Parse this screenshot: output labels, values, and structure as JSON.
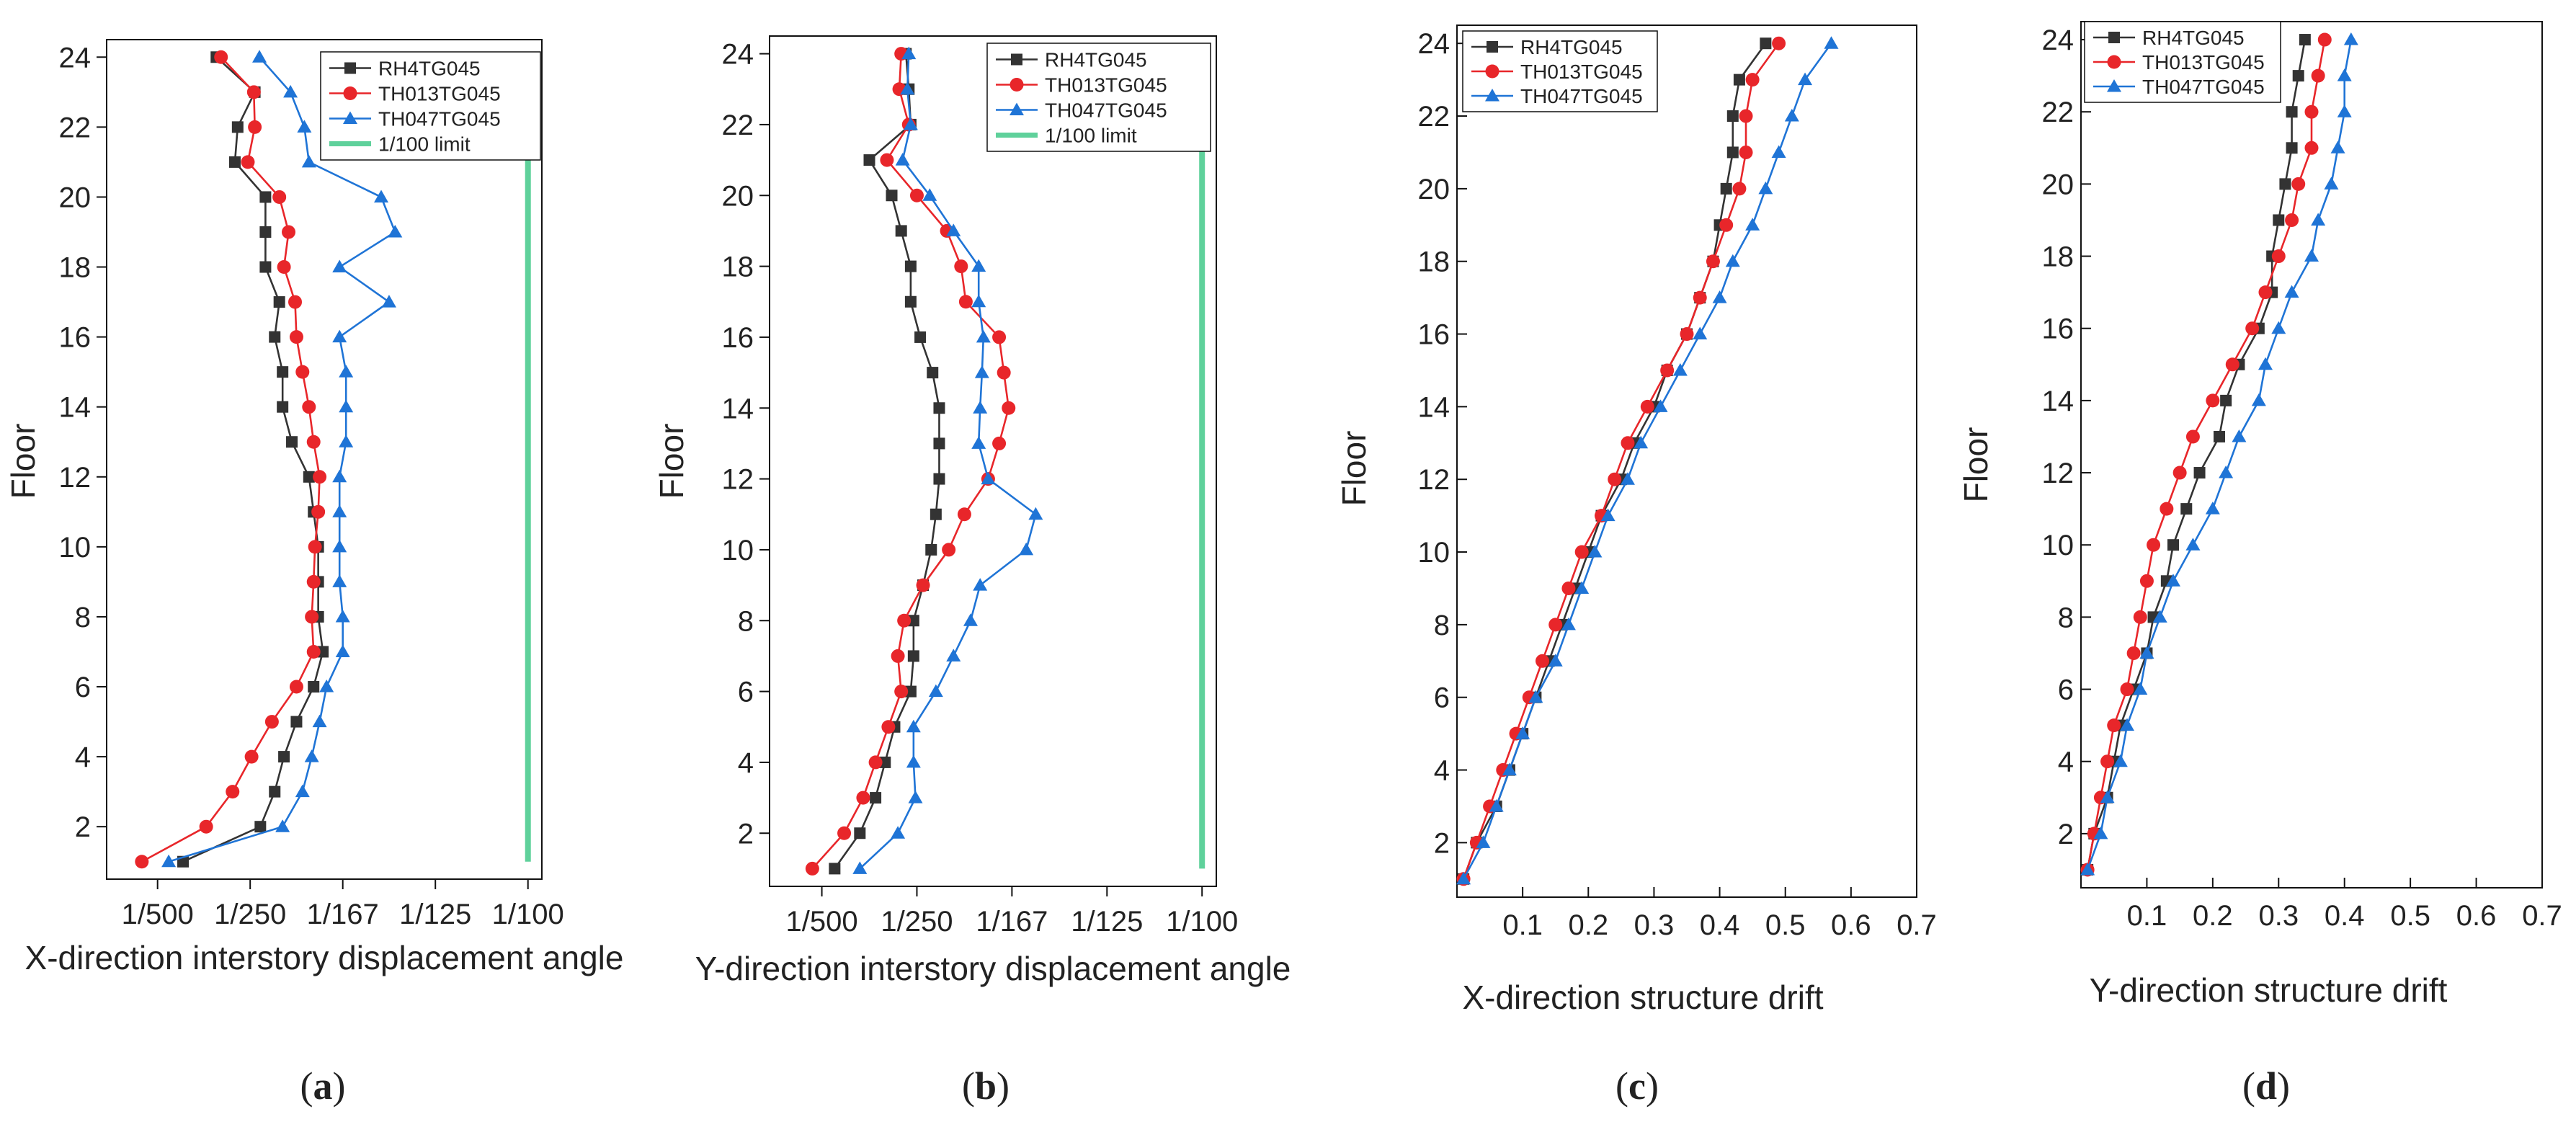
{
  "figure": {
    "series_colors": {
      "RH4TG045": "#333333",
      "TH013TG045": "#e8262a",
      "TH047TG045": "#1f74d6",
      "1/100 limit": "#5fd19b"
    }
  },
  "chart_data": [
    {
      "panel": "a",
      "type": "line",
      "xlabel": "X-direction interstory displacement angle",
      "ylabel": "Floor",
      "x_unit": "drift ratio (1/N)",
      "xlim": [
        0.0009,
        0.0103
      ],
      "ylim": [
        0.5,
        24.5
      ],
      "xticks": [
        0.002,
        0.004,
        0.006,
        0.008,
        0.01
      ],
      "xtick_labels": [
        "1/500",
        "1/250",
        "1/167",
        "1/125",
        "1/100"
      ],
      "yticks": [
        2,
        4,
        6,
        8,
        10,
        12,
        14,
        16,
        18,
        20,
        22,
        24
      ],
      "ytick_labels": [
        "2",
        "4",
        "6",
        "8",
        "10",
        "12",
        "14",
        "16",
        "18",
        "20",
        "22",
        "24"
      ],
      "legend": [
        "RH4TG045",
        "TH013TG045",
        "TH047TG045",
        "1/100 limit"
      ],
      "legend_position": "top-right",
      "panel_label": "a",
      "series": [
        {
          "name": "RH4TG045",
          "marker": "square",
          "y": [
            1,
            2,
            3,
            4,
            5,
            6,
            7,
            8,
            9,
            10,
            11,
            12,
            13,
            14,
            15,
            16,
            17,
            18,
            19,
            20,
            21,
            22,
            23,
            24
          ],
          "x": [
            0.00255,
            0.00422,
            0.00453,
            0.00473,
            0.005,
            0.00537,
            0.00557,
            0.00547,
            0.00547,
            0.00547,
            0.00537,
            0.00527,
            0.0049,
            0.0047,
            0.0047,
            0.00453,
            0.00463,
            0.00433,
            0.00433,
            0.00433,
            0.00367,
            0.00373,
            0.0041,
            0.00327
          ]
        },
        {
          "name": "TH013TG045",
          "marker": "circle",
          "y": [
            1,
            2,
            3,
            4,
            5,
            6,
            7,
            8,
            9,
            10,
            11,
            12,
            13,
            14,
            15,
            16,
            17,
            18,
            19,
            20,
            21,
            22,
            23,
            24
          ],
          "x": [
            0.00166,
            0.00305,
            0.00362,
            0.00403,
            0.00447,
            0.005,
            0.00537,
            0.00533,
            0.00537,
            0.0054,
            0.00547,
            0.0055,
            0.00537,
            0.00527,
            0.00513,
            0.005,
            0.00497,
            0.00473,
            0.00483,
            0.00463,
            0.00395,
            0.0041,
            0.00408,
            0.00337
          ]
        },
        {
          "name": "TH047TG045",
          "marker": "triangle",
          "y": [
            1,
            2,
            3,
            4,
            5,
            6,
            7,
            8,
            9,
            10,
            11,
            12,
            13,
            14,
            15,
            16,
            17,
            18,
            19,
            20,
            21,
            22,
            23,
            24
          ],
          "x": [
            0.00224,
            0.0047,
            0.00513,
            0.00533,
            0.0055,
            0.00565,
            0.006,
            0.006,
            0.00593,
            0.00593,
            0.00593,
            0.00593,
            0.00607,
            0.00607,
            0.00607,
            0.00593,
            0.007,
            0.00593,
            0.00713,
            0.00683,
            0.00527,
            0.00517,
            0.00487,
            0.0042
          ]
        },
        {
          "name": "1/100 limit",
          "marker": "none",
          "y": [
            1,
            24
          ],
          "x": [
            0.01,
            0.01
          ]
        }
      ]
    },
    {
      "panel": "b",
      "type": "line",
      "xlabel": "Y-direction interstory displacement angle",
      "ylabel": "Floor",
      "x_unit": "drift ratio (1/N)",
      "xlim": [
        0.0009,
        0.0103
      ],
      "ylim": [
        0.5,
        24.5
      ],
      "xticks": [
        0.002,
        0.004,
        0.006,
        0.008,
        0.01
      ],
      "xtick_labels": [
        "1/500",
        "1/250",
        "1/167",
        "1/125",
        "1/100"
      ],
      "yticks": [
        2,
        4,
        6,
        8,
        10,
        12,
        14,
        16,
        18,
        20,
        22,
        24
      ],
      "ytick_labels": [
        "2",
        "4",
        "6",
        "8",
        "10",
        "12",
        "14",
        "16",
        "18",
        "20",
        "22",
        "24"
      ],
      "legend": [
        "RH4TG045",
        "TH013TG045",
        "TH047TG045",
        "1/100 limit"
      ],
      "legend_position": "top-right",
      "panel_label": "b",
      "series": [
        {
          "name": "RH4TG045",
          "marker": "square",
          "y": [
            1,
            2,
            3,
            4,
            5,
            6,
            7,
            8,
            9,
            10,
            11,
            12,
            13,
            14,
            15,
            16,
            17,
            18,
            19,
            20,
            21,
            22,
            23,
            24
          ],
          "x": [
            0.00227,
            0.0028,
            0.00313,
            0.00333,
            0.00353,
            0.00387,
            0.00393,
            0.00393,
            0.00413,
            0.0043,
            0.0044,
            0.00447,
            0.00447,
            0.00447,
            0.00433,
            0.00407,
            0.00387,
            0.00387,
            0.00367,
            0.00347,
            0.003,
            0.00387,
            0.00383,
            0.00377
          ]
        },
        {
          "name": "TH013TG045",
          "marker": "circle",
          "y": [
            1,
            2,
            3,
            4,
            5,
            6,
            7,
            8,
            9,
            10,
            11,
            12,
            13,
            14,
            15,
            16,
            17,
            18,
            19,
            20,
            21,
            22,
            23,
            24
          ],
          "x": [
            0.0018,
            0.00247,
            0.00287,
            0.00313,
            0.0034,
            0.00367,
            0.0036,
            0.00373,
            0.00413,
            0.00467,
            0.005,
            0.0055,
            0.00573,
            0.00593,
            0.00583,
            0.00573,
            0.00503,
            0.00493,
            0.00463,
            0.004,
            0.00337,
            0.00383,
            0.00363,
            0.00367
          ]
        },
        {
          "name": "TH047TG045",
          "marker": "triangle",
          "y": [
            1,
            2,
            3,
            4,
            5,
            6,
            7,
            8,
            9,
            10,
            11,
            12,
            13,
            14,
            15,
            16,
            17,
            18,
            19,
            20,
            21,
            22,
            23,
            24
          ],
          "x": [
            0.0028,
            0.0036,
            0.00397,
            0.00393,
            0.00393,
            0.0044,
            0.00477,
            0.00513,
            0.00533,
            0.0063,
            0.0065,
            0.0055,
            0.0053,
            0.00533,
            0.00537,
            0.0054,
            0.0053,
            0.0053,
            0.00477,
            0.00427,
            0.0037,
            0.00387,
            0.0038,
            0.00383
          ]
        },
        {
          "name": "1/100 limit",
          "marker": "none",
          "y": [
            1,
            24
          ],
          "x": [
            0.01,
            0.01
          ]
        }
      ]
    },
    {
      "panel": "c",
      "type": "line",
      "xlabel": "X-direction structure drift",
      "ylabel": "Floor",
      "xlim": [
        0.0,
        0.7
      ],
      "ylim": [
        0.5,
        24.5
      ],
      "xticks": [
        0.1,
        0.2,
        0.3,
        0.4,
        0.5,
        0.6,
        0.7
      ],
      "xtick_labels": [
        "0.1",
        "0.2",
        "0.3",
        "0.4",
        "0.5",
        "0.6",
        "0.7"
      ],
      "yticks": [
        2,
        4,
        6,
        8,
        10,
        12,
        14,
        16,
        18,
        20,
        22,
        24
      ],
      "ytick_labels": [
        "2",
        "4",
        "6",
        "8",
        "10",
        "12",
        "14",
        "16",
        "18",
        "20",
        "22",
        "24"
      ],
      "legend": [
        "RH4TG045",
        "TH013TG045",
        "TH047TG045"
      ],
      "legend_position": "top-left",
      "panel_label": "c",
      "series": [
        {
          "name": "RH4TG045",
          "marker": "square",
          "y": [
            1,
            2,
            3,
            4,
            5,
            6,
            7,
            8,
            9,
            10,
            11,
            12,
            13,
            14,
            15,
            16,
            17,
            18,
            19,
            20,
            21,
            22,
            23,
            24
          ],
          "x": [
            0.01,
            0.03,
            0.06,
            0.08,
            0.1,
            0.12,
            0.14,
            0.16,
            0.18,
            0.2,
            0.22,
            0.25,
            0.27,
            0.3,
            0.32,
            0.35,
            0.37,
            0.39,
            0.4,
            0.41,
            0.42,
            0.42,
            0.43,
            0.47
          ]
        },
        {
          "name": "TH013TG045",
          "marker": "circle",
          "y": [
            1,
            2,
            3,
            4,
            5,
            6,
            7,
            8,
            9,
            10,
            11,
            12,
            13,
            14,
            15,
            16,
            17,
            18,
            19,
            20,
            21,
            22,
            23,
            24
          ],
          "x": [
            0.01,
            0.03,
            0.05,
            0.07,
            0.09,
            0.11,
            0.13,
            0.15,
            0.17,
            0.19,
            0.22,
            0.24,
            0.26,
            0.29,
            0.32,
            0.35,
            0.37,
            0.39,
            0.41,
            0.43,
            0.44,
            0.44,
            0.45,
            0.49
          ]
        },
        {
          "name": "TH047TG045",
          "marker": "triangle",
          "y": [
            1,
            2,
            3,
            4,
            5,
            6,
            7,
            8,
            9,
            10,
            11,
            12,
            13,
            14,
            15,
            16,
            17,
            18,
            19,
            20,
            21,
            22,
            23,
            24
          ],
          "x": [
            0.01,
            0.04,
            0.06,
            0.08,
            0.1,
            0.12,
            0.15,
            0.17,
            0.19,
            0.21,
            0.23,
            0.26,
            0.28,
            0.31,
            0.34,
            0.37,
            0.4,
            0.42,
            0.45,
            0.47,
            0.49,
            0.51,
            0.53,
            0.57
          ]
        }
      ]
    },
    {
      "panel": "d",
      "type": "line",
      "xlabel": "Y-direction structure drift",
      "ylabel": "Floor",
      "xlim": [
        0.0,
        0.7
      ],
      "ylim": [
        0.5,
        24.5
      ],
      "xticks": [
        0.1,
        0.2,
        0.3,
        0.4,
        0.5,
        0.6,
        0.7
      ],
      "xtick_labels": [
        "0.1",
        "0.2",
        "0.3",
        "0.4",
        "0.5",
        "0.6",
        "0.7"
      ],
      "yticks": [
        2,
        4,
        6,
        8,
        10,
        12,
        14,
        16,
        18,
        20,
        22,
        24
      ],
      "ytick_labels": [
        "2",
        "4",
        "6",
        "8",
        "10",
        "12",
        "14",
        "16",
        "18",
        "20",
        "22",
        "24"
      ],
      "legend": [
        "RH4TG045",
        "TH013TG045",
        "TH047TG045"
      ],
      "legend_position": "top-left",
      "panel_label": "d",
      "series": [
        {
          "name": "RH4TG045",
          "marker": "square",
          "y": [
            1,
            2,
            3,
            4,
            5,
            6,
            7,
            8,
            9,
            10,
            11,
            12,
            13,
            14,
            15,
            16,
            17,
            18,
            19,
            20,
            21,
            22,
            23,
            24
          ],
          "x": [
            0.01,
            0.02,
            0.04,
            0.05,
            0.06,
            0.08,
            0.1,
            0.11,
            0.13,
            0.14,
            0.16,
            0.18,
            0.21,
            0.22,
            0.24,
            0.27,
            0.29,
            0.29,
            0.3,
            0.31,
            0.32,
            0.32,
            0.33,
            0.34
          ]
        },
        {
          "name": "TH013TG045",
          "marker": "circle",
          "y": [
            1,
            2,
            3,
            4,
            5,
            6,
            7,
            8,
            9,
            10,
            11,
            12,
            13,
            14,
            15,
            16,
            17,
            18,
            19,
            20,
            21,
            22,
            23,
            24
          ],
          "x": [
            0.01,
            0.02,
            0.03,
            0.04,
            0.05,
            0.07,
            0.08,
            0.09,
            0.1,
            0.11,
            0.13,
            0.15,
            0.17,
            0.2,
            0.23,
            0.26,
            0.28,
            0.3,
            0.32,
            0.33,
            0.35,
            0.35,
            0.36,
            0.37
          ]
        },
        {
          "name": "TH047TG045",
          "marker": "triangle",
          "y": [
            1,
            2,
            3,
            4,
            5,
            6,
            7,
            8,
            9,
            10,
            11,
            12,
            13,
            14,
            15,
            16,
            17,
            18,
            19,
            20,
            21,
            22,
            23,
            24
          ],
          "x": [
            0.01,
            0.03,
            0.04,
            0.06,
            0.07,
            0.09,
            0.1,
            0.12,
            0.14,
            0.17,
            0.2,
            0.22,
            0.24,
            0.27,
            0.28,
            0.3,
            0.32,
            0.35,
            0.36,
            0.38,
            0.39,
            0.4,
            0.4,
            0.41
          ]
        }
      ]
    }
  ]
}
